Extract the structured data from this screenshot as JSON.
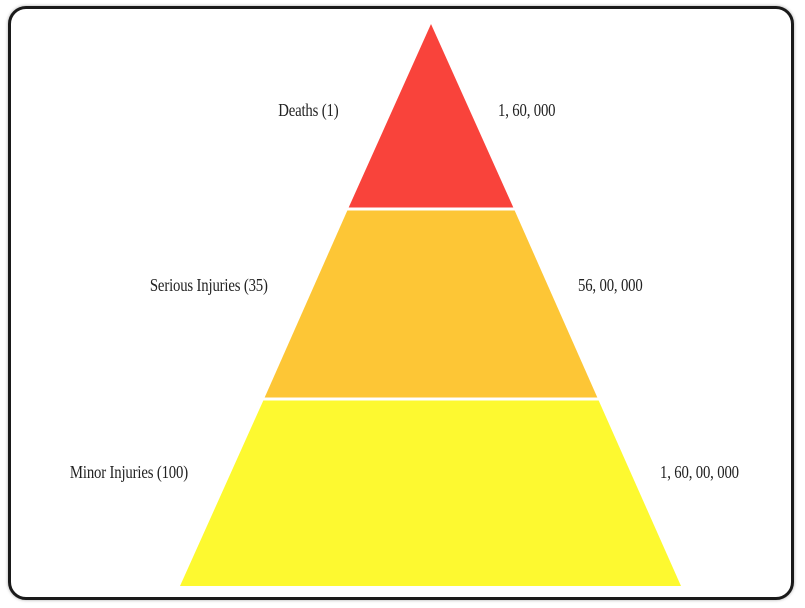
{
  "pyramid": {
    "tiers": [
      {
        "name": "Deaths (1)",
        "value": "1, 60, 000",
        "color": "#f9433b"
      },
      {
        "name": "Serious Injuries (35)",
        "value": "56, 00, 000",
        "color": "#fdc636"
      },
      {
        "name": "Minor Injuries (100)",
        "value": "1, 60, 00, 000",
        "color": "#fdf930"
      }
    ]
  }
}
